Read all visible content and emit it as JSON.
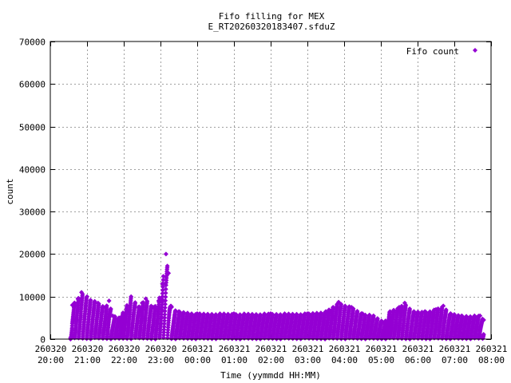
{
  "chart_data": {
    "type": "scatter",
    "title_line1": "Fifo filling for MEX",
    "title_line2": "E_RT20260320183407.sfduZ",
    "xlabel": "Time (yymmdd HH:MM)",
    "ylabel": "count",
    "xlim_hours": [
      20,
      32
    ],
    "ylim": [
      0,
      70000
    ],
    "grid": true,
    "legend_position": "top-right",
    "marker": "diamond",
    "series_color": "#9400d3",
    "yticks": [
      0,
      10000,
      20000,
      30000,
      40000,
      50000,
      60000,
      70000
    ],
    "xticks": [
      {
        "hour": 20,
        "date": "260320",
        "time": "20:00"
      },
      {
        "hour": 21,
        "date": "260320",
        "time": "21:00"
      },
      {
        "hour": 22,
        "date": "260320",
        "time": "22:00"
      },
      {
        "hour": 23,
        "date": "260320",
        "time": "23:00"
      },
      {
        "hour": 24,
        "date": "260321",
        "time": "00:00"
      },
      {
        "hour": 25,
        "date": "260321",
        "time": "01:00"
      },
      {
        "hour": 26,
        "date": "260321",
        "time": "02:00"
      },
      {
        "hour": 27,
        "date": "260321",
        "time": "03:00"
      },
      {
        "hour": 28,
        "date": "260321",
        "time": "04:00"
      },
      {
        "hour": 29,
        "date": "260321",
        "time": "05:00"
      },
      {
        "hour": 30,
        "date": "260321",
        "time": "06:00"
      },
      {
        "hour": 31,
        "date": "260321",
        "time": "07:00"
      },
      {
        "hour": 32,
        "date": "260321",
        "time": "08:00"
      }
    ],
    "series": [
      {
        "name": "Fifo count",
        "start_hour": 20.55,
        "end_hour": 31.8,
        "peaks": [
          [
            20.55,
            300
          ],
          [
            20.6,
            8000
          ],
          [
            20.75,
            9500
          ],
          [
            20.85,
            11000
          ],
          [
            21.0,
            10000
          ],
          [
            21.3,
            8500
          ],
          [
            21.5,
            7500
          ],
          [
            21.6,
            9000
          ],
          [
            21.7,
            5500
          ],
          [
            21.9,
            5000
          ],
          [
            22.2,
            10000
          ],
          [
            22.4,
            7500
          ],
          [
            22.5,
            8500
          ],
          [
            22.6,
            9500
          ],
          [
            22.8,
            7500
          ],
          [
            22.95,
            9000
          ],
          [
            23.05,
            13000
          ],
          [
            23.15,
            20000
          ],
          [
            23.22,
            15500
          ],
          [
            23.3,
            7500
          ],
          [
            23.5,
            6500
          ],
          [
            24.0,
            6000
          ],
          [
            25.0,
            6000
          ],
          [
            26.0,
            6000
          ],
          [
            27.0,
            6000
          ],
          [
            27.5,
            6500
          ],
          [
            27.7,
            7500
          ],
          [
            27.85,
            8700
          ],
          [
            28.2,
            7500
          ],
          [
            28.5,
            6000
          ],
          [
            28.8,
            5500
          ],
          [
            29.1,
            4000
          ],
          [
            29.25,
            6500
          ],
          [
            29.5,
            7500
          ],
          [
            29.65,
            8500
          ],
          [
            29.9,
            6500
          ],
          [
            30.2,
            6500
          ],
          [
            30.5,
            7000
          ],
          [
            30.7,
            7800
          ],
          [
            30.9,
            6000
          ],
          [
            31.2,
            5500
          ],
          [
            31.7,
            5500
          ],
          [
            31.8,
            4500
          ]
        ]
      }
    ]
  }
}
